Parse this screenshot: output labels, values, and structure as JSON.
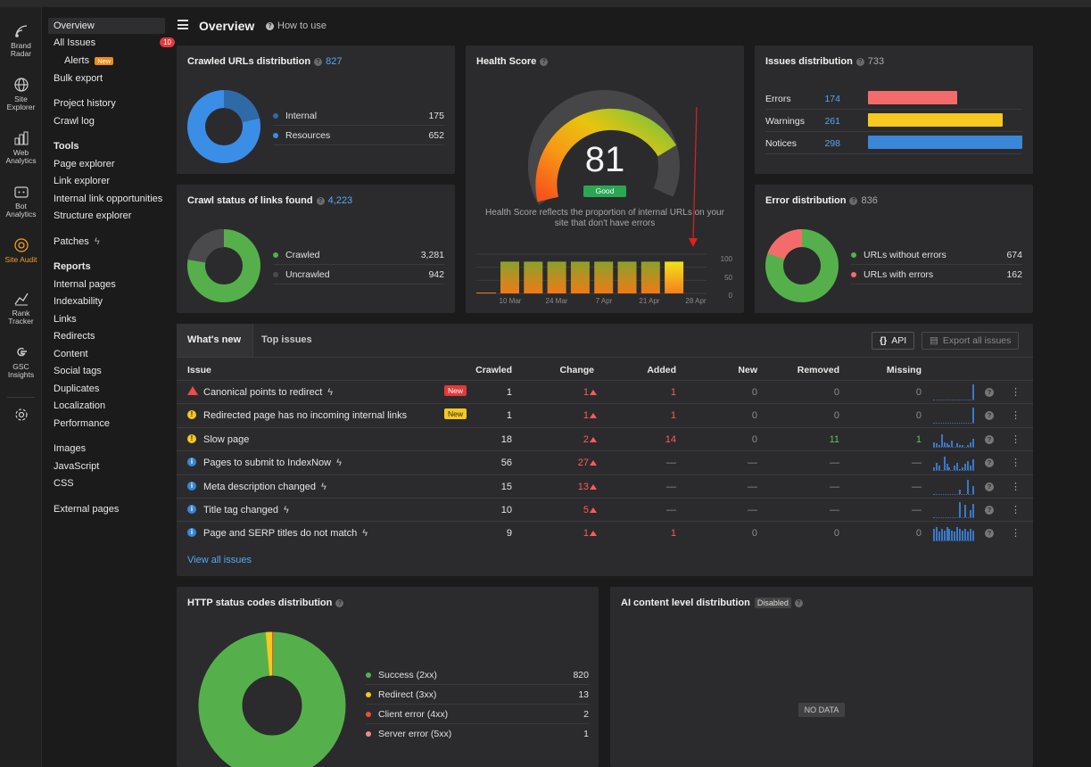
{
  "rail": [
    {
      "label": "Brand Radar",
      "icon": "brand-radar-icon"
    },
    {
      "label": "Site Explorer",
      "icon": "globe-icon"
    },
    {
      "label": "Web Analytics",
      "icon": "chart-icon"
    },
    {
      "label": "Bot Analytics",
      "icon": "bot-icon"
    },
    {
      "label": "Site Audit",
      "icon": "audit-icon"
    },
    {
      "label": "Rank Tracker",
      "icon": "rank-icon"
    },
    {
      "label": "GSC Insights",
      "icon": "google-icon"
    }
  ],
  "nav": {
    "overview": "Overview",
    "all_issues": "All Issues",
    "all_issues_count": "10",
    "alerts": "Alerts",
    "alerts_badge": "New",
    "bulk_export": "Bulk export",
    "project_history": "Project history",
    "crawl_log": "Crawl log",
    "tools": "Tools",
    "page_explorer": "Page explorer",
    "link_explorer": "Link explorer",
    "internal_link_opps": "Internal link opportunities",
    "structure_explorer": "Structure explorer",
    "patches": "Patches",
    "reports": "Reports",
    "internal_pages": "Internal pages",
    "indexability": "Indexability",
    "links": "Links",
    "redirects": "Redirects",
    "content": "Content",
    "social_tags": "Social tags",
    "duplicates": "Duplicates",
    "localization": "Localization",
    "performance": "Performance",
    "images": "Images",
    "javascript": "JavaScript",
    "css": "CSS",
    "external_pages": "External pages"
  },
  "header": {
    "title": "Overview",
    "how_to_use": "How to use"
  },
  "crawled": {
    "title": "Crawled URLs distribution",
    "total": "827",
    "items": [
      {
        "label": "Internal",
        "value": "175",
        "color": "#2f6aa8"
      },
      {
        "label": "Resources",
        "value": "652",
        "color": "#3a8ee6"
      }
    ]
  },
  "crawl_status": {
    "title": "Crawl status of links found",
    "total": "4,223",
    "items": [
      {
        "label": "Crawled",
        "value": "3,281",
        "color": "#55b04c"
      },
      {
        "label": "Uncrawled",
        "value": "942",
        "color": "#4a4a4c"
      }
    ]
  },
  "health": {
    "title": "Health Score",
    "score": "81",
    "status": "Good",
    "description": "Health Score reflects the proportion of internal URLs on your site that don't have errors",
    "y_ticks": [
      "100",
      "50",
      "0"
    ],
    "x_ticks": [
      "10 Mar",
      "24 Mar",
      "7 Apr",
      "21 Apr",
      "28 Apr"
    ],
    "history": [
      0,
      81,
      81,
      81,
      81,
      81,
      81,
      81,
      81
    ]
  },
  "issues_dist": {
    "title": "Issues distribution",
    "total": "733",
    "items": [
      {
        "label": "Errors",
        "value": "174",
        "color": "#f46b6b",
        "fraction": 0.58
      },
      {
        "label": "Warnings",
        "value": "261",
        "color": "#f7c81e",
        "fraction": 0.87
      },
      {
        "label": "Notices",
        "value": "298",
        "color": "#3a86d8",
        "fraction": 1.0
      }
    ]
  },
  "error_dist": {
    "title": "Error distribution",
    "total": "836",
    "items": [
      {
        "label": "URLs without errors",
        "value": "674",
        "color": "#55b04c"
      },
      {
        "label": "URLs with errors",
        "value": "162",
        "color": "#f46b6b"
      }
    ]
  },
  "issues": {
    "tabs": [
      "What's new",
      "Top issues"
    ],
    "api_label": "API",
    "export_label": "Export all issues",
    "columns": [
      "Issue",
      "Crawled",
      "Change",
      "Added",
      "New",
      "Removed",
      "Missing"
    ],
    "rows": [
      {
        "type": "error",
        "name": "Canonical points to redirect",
        "flash": true,
        "tag": "New",
        "crawled": "1",
        "change": "1",
        "added": "1",
        "new": "0",
        "removed": "0",
        "missing": "0",
        "spark": [
          0,
          0,
          0,
          0,
          0,
          0,
          0,
          0,
          0,
          0,
          0,
          0,
          0,
          0,
          0,
          1
        ]
      },
      {
        "type": "warning",
        "name": "Redirected page has no incoming internal links",
        "flash": false,
        "tag": "New",
        "crawled": "1",
        "change": "1",
        "added": "1",
        "new": "0",
        "removed": "0",
        "missing": "0",
        "spark": [
          0,
          0,
          0,
          0,
          0,
          0,
          0,
          0,
          0,
          0,
          0,
          0,
          0,
          0,
          0,
          1
        ]
      },
      {
        "type": "warning",
        "name": "Slow page",
        "flash": false,
        "tag": "",
        "crawled": "18",
        "change": "2",
        "added": "14",
        "new": "0",
        "removed": "11",
        "missing": "1",
        "spark": [
          0.3,
          0.2,
          0.1,
          0.8,
          0.3,
          0.2,
          0.1,
          0.4,
          0,
          0.2,
          0.1,
          0.1,
          0,
          0.1,
          0.3,
          0.5
        ]
      },
      {
        "type": "notice",
        "name": "Pages to submit to IndexNow",
        "flash": true,
        "tag": "",
        "crawled": "56",
        "change": "27",
        "added": "—",
        "new": "—",
        "removed": "—",
        "missing": "—",
        "spark": [
          0.2,
          0.5,
          0.3,
          0,
          0.9,
          0.4,
          0.2,
          0,
          0.3,
          0.5,
          0.1,
          0.2,
          0.4,
          0.6,
          0.3,
          0.7
        ]
      },
      {
        "type": "notice",
        "name": "Meta description changed",
        "flash": true,
        "tag": "",
        "crawled": "15",
        "change": "13",
        "added": "—",
        "new": "—",
        "removed": "—",
        "missing": "—",
        "spark": [
          0,
          0,
          0,
          0,
          0,
          0,
          0,
          0,
          0,
          0,
          0.3,
          0,
          0,
          0.9,
          0,
          0.5
        ]
      },
      {
        "type": "notice",
        "name": "Title tag changed",
        "flash": true,
        "tag": "",
        "crawled": "10",
        "change": "5",
        "added": "—",
        "new": "—",
        "removed": "—",
        "missing": "—",
        "spark": [
          0,
          0,
          0,
          0,
          0,
          0,
          0,
          0,
          0,
          0,
          1,
          0,
          0.8,
          0,
          0.5,
          0.9
        ]
      },
      {
        "type": "notice",
        "name": "Page and SERP titles do not match",
        "flash": true,
        "tag": "",
        "crawled": "9",
        "change": "1",
        "added": "1",
        "new": "0",
        "removed": "0",
        "missing": "0",
        "spark": [
          0.8,
          0.9,
          0.6,
          0.8,
          0.7,
          0.9,
          0.8,
          0.7,
          0.6,
          0.9,
          0.8,
          0.7,
          0.8,
          0.6,
          0.8,
          0.7
        ]
      }
    ],
    "view_all": "View all issues"
  },
  "http": {
    "title": "HTTP status codes distribution",
    "items": [
      {
        "label": "Success (2xx)",
        "value": "820",
        "color": "#55b04c"
      },
      {
        "label": "Redirect (3xx)",
        "value": "13",
        "color": "#f7c81e"
      },
      {
        "label": "Client error (4xx)",
        "value": "2",
        "color": "#f0502a"
      },
      {
        "label": "Server error (5xx)",
        "value": "1",
        "color": "#f48a8a"
      }
    ]
  },
  "ai": {
    "title": "AI content level distribution",
    "badge": "Disabled",
    "no_data": "NO DATA"
  }
}
